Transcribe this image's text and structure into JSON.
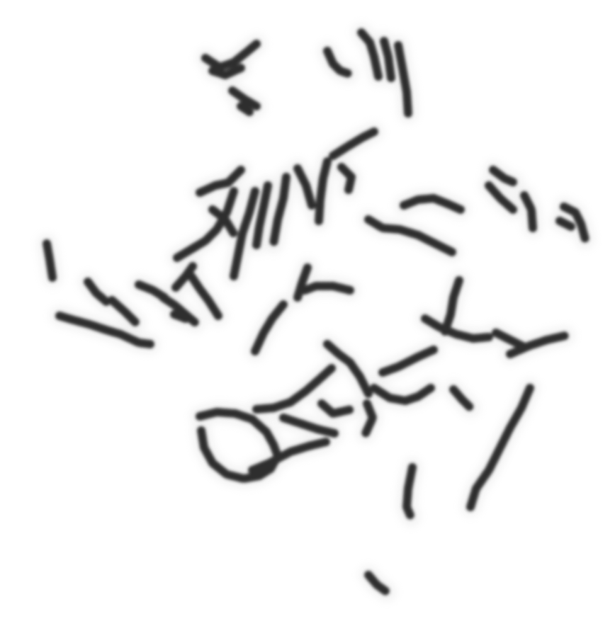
{
  "image": {
    "subject": "metaphase-chromosome-spread",
    "background_color": "#ffffff",
    "chromosome_color": "#2e2e2e",
    "halo_color": "#d9d9d9",
    "labels": []
  }
}
